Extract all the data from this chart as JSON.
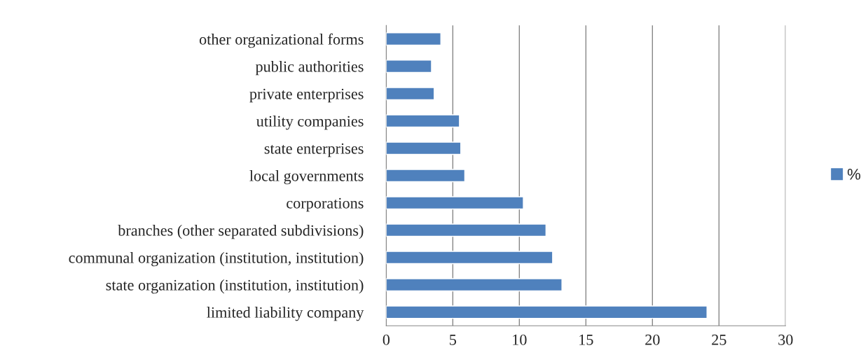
{
  "chart_data": {
    "type": "bar",
    "orientation": "horizontal",
    "categories": [
      "other organizational forms",
      "public authorities",
      "private enterprises",
      "utility companies",
      "state enterprises",
      "local governments",
      "corporations",
      "branches (other separated subdivisions)",
      "communal organization (institution, institution)",
      "state organization (institution, institution)",
      "limited liability company"
    ],
    "series": [
      {
        "name": "%",
        "color": "#4f81bd",
        "values": [
          4.1,
          3.4,
          3.6,
          5.5,
          5.6,
          5.9,
          10.3,
          12.0,
          12.5,
          13.2,
          24.1
        ]
      }
    ],
    "xlim": [
      0,
      30
    ],
    "xticks": [
      0,
      5,
      10,
      15,
      20,
      25,
      30
    ],
    "grid": "x",
    "legend": "right"
  }
}
